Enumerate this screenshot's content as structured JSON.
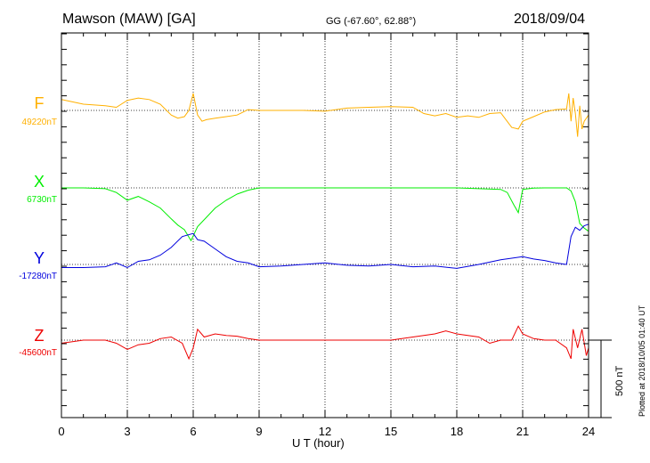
{
  "header": {
    "title": "Mawson (MAW)  [GA]",
    "coords": "GG (-67.60°,  62.88°)",
    "date": "2018/09/04"
  },
  "plotted_note": "Plotted at 2018/10/05 01:40 UT",
  "scale_bar": {
    "label": "500 nT",
    "value_nT": 500
  },
  "chart_data": {
    "type": "line",
    "xlabel": "U T (hour)",
    "xlim": [
      0,
      24
    ],
    "xticks": [
      0,
      3,
      6,
      9,
      12,
      15,
      18,
      21,
      24
    ],
    "xtick_labels": [
      "0",
      "3",
      "6",
      "9",
      "12",
      "15",
      "18",
      "21",
      "24"
    ],
    "grid": true,
    "series": [
      {
        "name": "F",
        "baseline_label": "49220nT",
        "baseline_nT": 49220,
        "color": "#ffb000",
        "x": [
          0,
          1,
          2,
          2.5,
          3,
          3.5,
          4,
          4.5,
          5,
          5.3,
          5.6,
          5.8,
          6,
          6.2,
          6.4,
          6.6,
          7,
          7.5,
          8,
          8.5,
          9,
          10,
          11,
          12,
          13,
          14,
          15,
          16,
          16.5,
          17,
          17.5,
          18,
          18.5,
          19,
          19.5,
          20,
          20.5,
          20.8,
          21,
          21.5,
          22,
          22.5,
          23,
          23.1,
          23.2,
          23.3,
          23.4,
          23.5,
          23.6,
          23.7,
          23.8,
          24
        ],
        "y": [
          49290,
          49260,
          49250,
          49240,
          49285,
          49300,
          49290,
          49260,
          49190,
          49170,
          49180,
          49220,
          49330,
          49190,
          49150,
          49160,
          49170,
          49180,
          49190,
          49225,
          49220,
          49220,
          49220,
          49215,
          49235,
          49240,
          49245,
          49240,
          49200,
          49185,
          49200,
          49175,
          49185,
          49175,
          49200,
          49205,
          49110,
          49100,
          49150,
          49180,
          49210,
          49225,
          49230,
          49330,
          49150,
          49300,
          49200,
          49050,
          49250,
          49100,
          49150,
          49190
        ]
      },
      {
        "name": "X",
        "baseline_label": "6730nT",
        "baseline_nT": 6730,
        "color": "#00ee00",
        "x": [
          0,
          1,
          2,
          2.5,
          3,
          3.5,
          4,
          4.5,
          5,
          5.3,
          5.6,
          5.9,
          6.2,
          6.6,
          7,
          7.5,
          8,
          8.5,
          9,
          10,
          11,
          12,
          13,
          14,
          15,
          16,
          17,
          18,
          19,
          20,
          20.3,
          20.6,
          20.8,
          21,
          21.5,
          22,
          22.5,
          23,
          23.2,
          23.4,
          23.6,
          23.8,
          24
        ],
        "y": [
          6730,
          6730,
          6725,
          6700,
          6650,
          6675,
          6640,
          6600,
          6530,
          6490,
          6460,
          6390,
          6480,
          6540,
          6600,
          6650,
          6690,
          6715,
          6730,
          6730,
          6730,
          6730,
          6730,
          6730,
          6730,
          6730,
          6730,
          6730,
          6725,
          6720,
          6700,
          6620,
          6570,
          6720,
          6728,
          6730,
          6730,
          6730,
          6710,
          6640,
          6500,
          6470,
          6450
        ]
      },
      {
        "name": "Y",
        "baseline_label": "-17280nT",
        "baseline_nT": -17280,
        "color": "#0000dd",
        "x": [
          0,
          1,
          2,
          2.5,
          3,
          3.5,
          4,
          4.5,
          5,
          5.5,
          6,
          6.2,
          6.5,
          7,
          7.5,
          8,
          8.5,
          9,
          10,
          11,
          12,
          13,
          14,
          15,
          16,
          17,
          18,
          19,
          20,
          21,
          21.5,
          22,
          22.5,
          23,
          23.2,
          23.4,
          23.6,
          23.8,
          24
        ],
        "y": [
          -17300,
          -17300,
          -17295,
          -17270,
          -17300,
          -17260,
          -17250,
          -17220,
          -17170,
          -17100,
          -17080,
          -17120,
          -17130,
          -17180,
          -17230,
          -17260,
          -17270,
          -17295,
          -17290,
          -17280,
          -17270,
          -17285,
          -17290,
          -17280,
          -17295,
          -17290,
          -17305,
          -17280,
          -17250,
          -17230,
          -17245,
          -17255,
          -17270,
          -17280,
          -17100,
          -17040,
          -17060,
          -17030,
          -17020
        ]
      },
      {
        "name": "Z",
        "baseline_label": "-45600nT",
        "baseline_nT": -45600,
        "color": "#ee0000",
        "x": [
          0,
          1,
          2,
          2.5,
          3,
          3.5,
          4,
          4.5,
          5,
          5.5,
          5.8,
          6,
          6.2,
          6.5,
          7,
          7.5,
          8,
          8.5,
          9,
          10,
          11,
          12,
          13,
          14,
          15,
          16,
          17,
          17.5,
          18,
          19,
          19.5,
          20,
          20.5,
          20.8,
          21,
          21.5,
          22,
          22.5,
          23,
          23.2,
          23.3,
          23.5,
          23.7,
          23.9,
          24
        ],
        "y": [
          -45620,
          -45600,
          -45600,
          -45620,
          -45660,
          -45630,
          -45620,
          -45590,
          -45580,
          -45620,
          -45720,
          -45650,
          -45530,
          -45580,
          -45560,
          -45570,
          -45575,
          -45590,
          -45600,
          -45600,
          -45600,
          -45600,
          -45600,
          -45600,
          -45600,
          -45580,
          -45560,
          -45540,
          -45560,
          -45580,
          -45620,
          -45600,
          -45600,
          -45510,
          -45560,
          -45590,
          -45600,
          -45600,
          -45650,
          -45720,
          -45530,
          -45650,
          -45530,
          -45700,
          -45650
        ]
      }
    ]
  }
}
